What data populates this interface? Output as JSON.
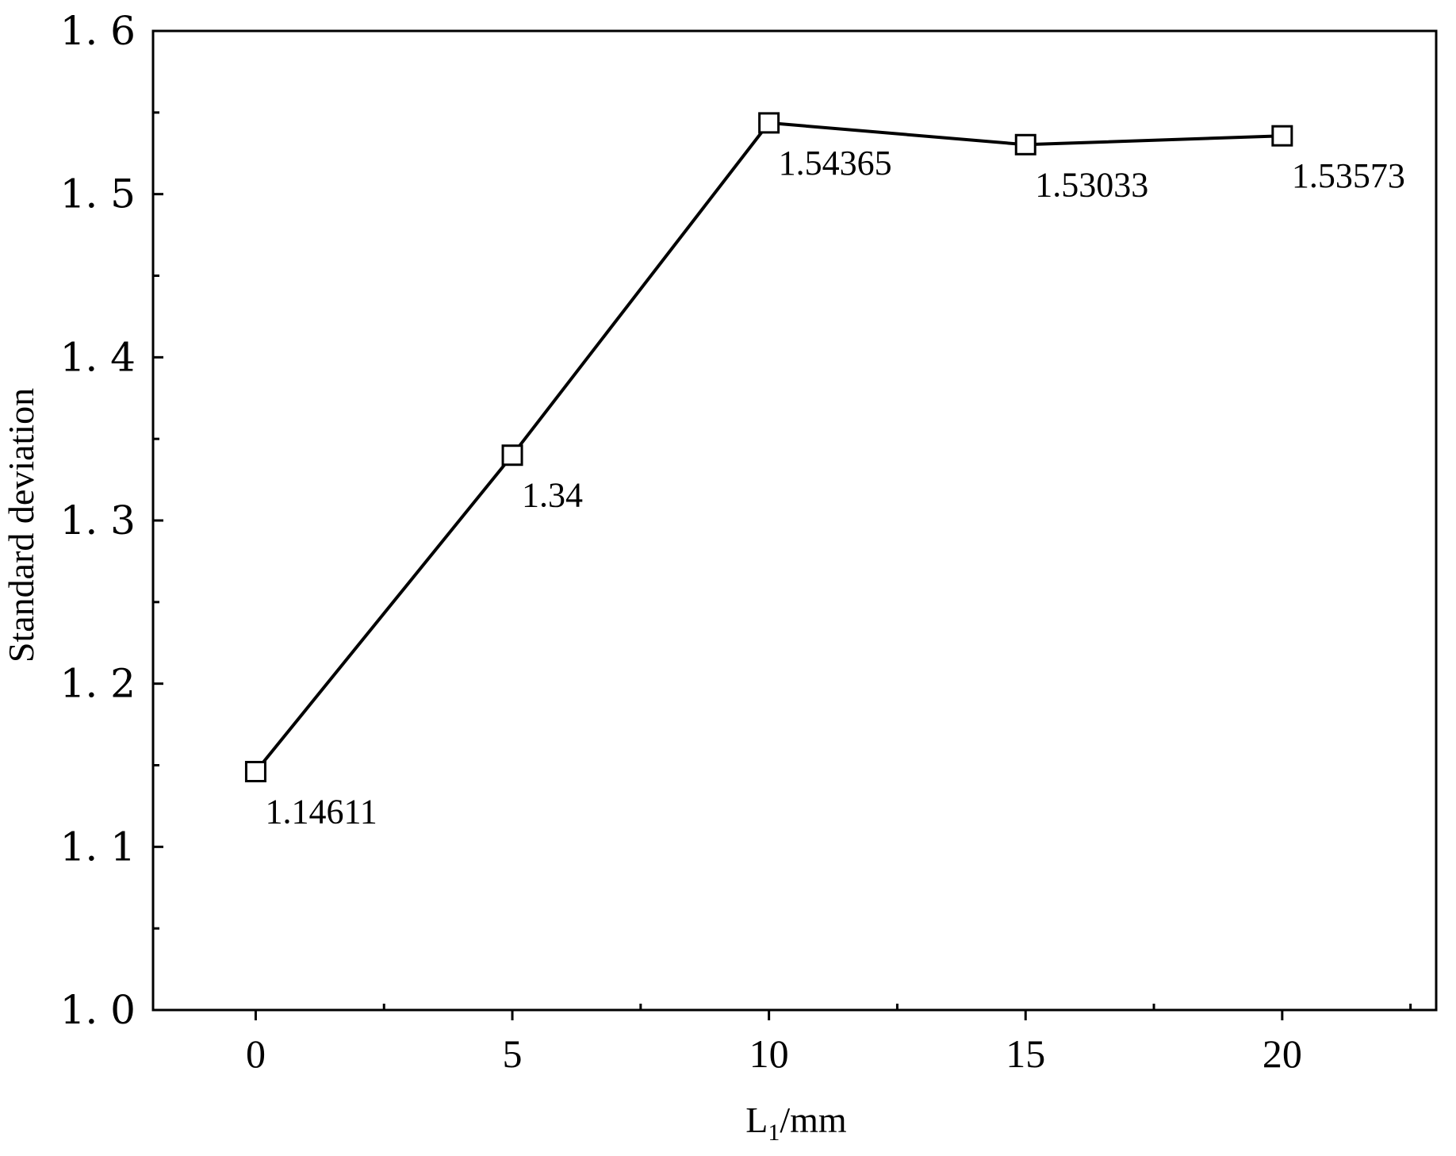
{
  "chart_data": {
    "type": "line",
    "title": "",
    "xlabel": "L",
    "xlabel_subscript": "1",
    "xlabel_suffix": "/mm",
    "ylabel": "Standard deviation",
    "xlim": [
      -2,
      23
    ],
    "ylim": [
      1.0,
      1.6
    ],
    "x_ticks": [
      0,
      5,
      10,
      15,
      20
    ],
    "x_tick_labels": [
      "0",
      "5",
      "10",
      "15",
      "20"
    ],
    "x_minor_ticks": [
      2.5,
      7.5,
      12.5,
      17.5,
      22.5
    ],
    "y_ticks": [
      1.0,
      1.1,
      1.2,
      1.3,
      1.4,
      1.5,
      1.6
    ],
    "y_tick_labels": [
      "1. 0",
      "1. 1",
      "1. 2",
      "1. 3",
      "1. 4",
      "1. 5",
      "1. 6"
    ],
    "y_minor_ticks": [
      1.05,
      1.15,
      1.25,
      1.35,
      1.45,
      1.55
    ],
    "grid": false,
    "series": [
      {
        "marker": "hollow-square",
        "color": "#000000",
        "x": [
          0,
          5,
          10,
          15,
          20
        ],
        "y": [
          1.14611,
          1.34,
          1.54365,
          1.53033,
          1.53573
        ],
        "data_labels": [
          "1.14611",
          "1.34",
          "1.54365",
          "1.53033",
          "1.53573"
        ]
      }
    ]
  }
}
